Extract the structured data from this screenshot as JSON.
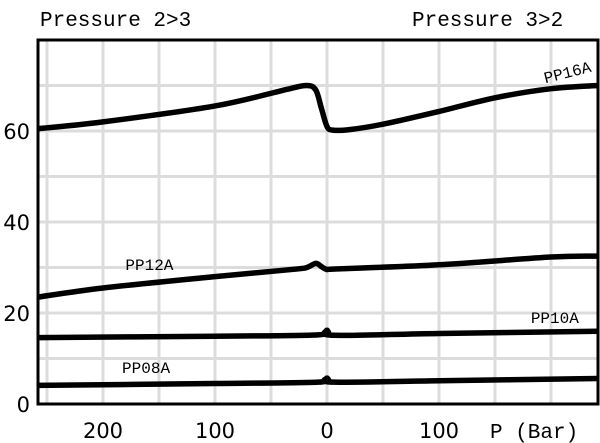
{
  "chart_data": {
    "type": "line",
    "title_left": "Pressure 2>3",
    "title_right": "Pressure 3>2",
    "xlabel": "P (Bar)",
    "ylabel": "",
    "xlim": [
      -258,
      242
    ],
    "ylim": [
      0,
      80
    ],
    "x_grid_step": 50,
    "y_grid_step": 10,
    "grid": true,
    "x_ticks": [
      {
        "value": -200,
        "label": "200"
      },
      {
        "value": -100,
        "label": "100"
      },
      {
        "value": 0,
        "label": "0"
      },
      {
        "value": 100,
        "label": "100"
      }
    ],
    "y_ticks": [
      {
        "value": 0,
        "label": "0"
      },
      {
        "value": 20,
        "label": "20"
      },
      {
        "value": 40,
        "label": "40"
      },
      {
        "value": 60,
        "label": "60"
      }
    ],
    "series": [
      {
        "name": "PP16A",
        "label_pos": [
          195,
          70.5
        ],
        "label_angle": -14,
        "points": [
          [
            -258,
            60.5
          ],
          [
            -200,
            62
          ],
          [
            -100,
            65.5
          ],
          [
            -35,
            69.2
          ],
          [
            -18,
            70
          ],
          [
            -10,
            69
          ],
          [
            -5,
            65
          ],
          [
            0,
            61
          ],
          [
            5,
            60.2
          ],
          [
            20,
            60.3
          ],
          [
            50,
            61.5
          ],
          [
            100,
            64.3
          ],
          [
            150,
            67.3
          ],
          [
            200,
            69.3
          ],
          [
            242,
            70
          ]
        ]
      },
      {
        "name": "PP12A",
        "label_pos": [
          -180,
          29.5
        ],
        "label_angle": 0,
        "points": [
          [
            -258,
            23.5
          ],
          [
            -200,
            25.5
          ],
          [
            -100,
            28
          ],
          [
            -30,
            29.6
          ],
          [
            -18,
            30
          ],
          [
            -10,
            30.9
          ],
          [
            -5,
            30.2
          ],
          [
            0,
            29.6
          ],
          [
            10,
            29.7
          ],
          [
            100,
            30.6
          ],
          [
            200,
            32.3
          ],
          [
            242,
            32.5
          ]
        ]
      },
      {
        "name": "PP10A",
        "label_pos": [
          182,
          17.8
        ],
        "label_angle": 0,
        "points": [
          [
            -258,
            14.6
          ],
          [
            -100,
            14.9
          ],
          [
            -8,
            15.2
          ],
          [
            0,
            16.2
          ],
          [
            6,
            15.1
          ],
          [
            100,
            15.5
          ],
          [
            242,
            16
          ]
        ]
      },
      {
        "name": "PP08A",
        "label_pos": [
          -183,
          6.8
        ],
        "label_angle": 0,
        "points": [
          [
            -258,
            4.1
          ],
          [
            -100,
            4.5
          ],
          [
            -8,
            4.8
          ],
          [
            0,
            5.7
          ],
          [
            6,
            4.8
          ],
          [
            100,
            5.1
          ],
          [
            242,
            5.6
          ]
        ]
      }
    ]
  }
}
